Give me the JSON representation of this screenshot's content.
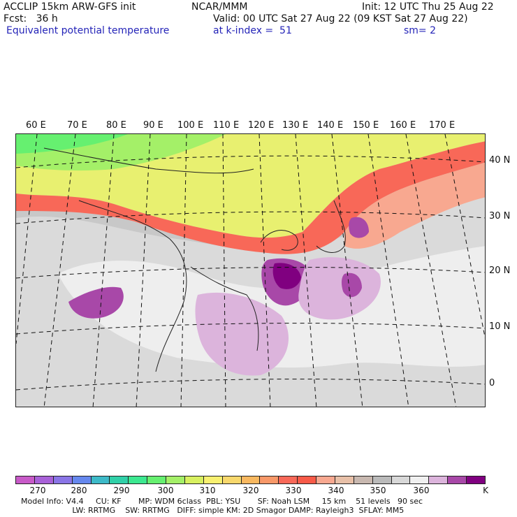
{
  "header": {
    "left_line1": "ACCLIP 15km ARW-GFS init",
    "left_line2": "Fcst:   36 h",
    "field_name": "Equivalent potential temperature",
    "center_line1": "NCAR/MMM",
    "valid_line": "Valid: 00 UTC Sat 27 Aug 22 (09 KST Sat 27 Aug 22)",
    "init_line": "Init: 12 UTC Thu 25 Aug 22",
    "level_line": "at k-index =  51",
    "smooth_line": "sm= 2"
  },
  "map": {
    "lon_labels": [
      "60 E",
      "70 E",
      "80 E",
      "90 E",
      "100 E",
      "110 E",
      "120 E",
      "130 E",
      "140 E",
      "150 E",
      "160 E",
      "170 E"
    ],
    "lat_labels": [
      "40 N",
      "30 N",
      "20 N",
      "10 N",
      "0"
    ]
  },
  "colorbar": {
    "unit": "K",
    "tick_labels": [
      "270",
      "280",
      "290",
      "300",
      "310",
      "320",
      "330",
      "340",
      "350",
      "360"
    ],
    "colors": [
      "#c85ac8",
      "#a861d8",
      "#8a75e6",
      "#6688ee",
      "#3dbac8",
      "#30d0a8",
      "#3ce890",
      "#66f070",
      "#a4f068",
      "#d8f060",
      "#f8f070",
      "#f8d86c",
      "#f8b860",
      "#f89868",
      "#f86858",
      "#f85a48",
      "#f8a890",
      "#e8c0a8",
      "#c8b8b0",
      "#bababa",
      "#d8d8d8",
      "#f0f0f0",
      "#dcb4dc",
      "#a848a8",
      "#800080"
    ]
  },
  "footer": {
    "line1": "Model Info: V4.4     CU: KF       MP: WDM 6class  PBL: YSU       SF: Noah LSM     15 km    51 levels   90 sec",
    "line2": "                     LW: RRTMG    SW: RRTMG   DIFF: simple KM: 2D Smagor DAMP: Rayleigh3  SFLAY: MM5"
  }
}
